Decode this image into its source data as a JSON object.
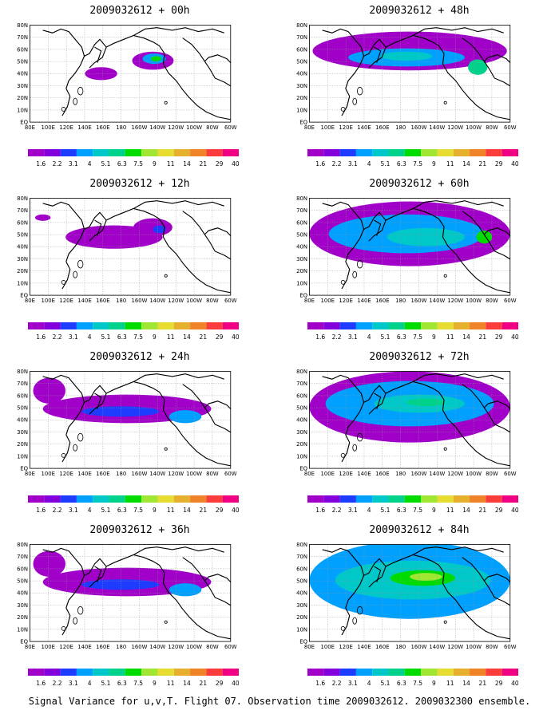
{
  "panels": [
    {
      "title": "2009032612 + 00h",
      "intensity": 0
    },
    {
      "title": "2009032612 + 48h",
      "intensity": 3
    },
    {
      "title": "2009032612 + 12h",
      "intensity": 1
    },
    {
      "title": "2009032612 + 60h",
      "intensity": 4
    },
    {
      "title": "2009032612 + 24h",
      "intensity": 2
    },
    {
      "title": "2009032612 + 72h",
      "intensity": 5
    },
    {
      "title": "2009032612 + 36h",
      "intensity": 2
    },
    {
      "title": "2009032612 + 84h",
      "intensity": 6
    }
  ],
  "lon_labels": [
    "80E",
    "100E",
    "120E",
    "140E",
    "160E",
    "180",
    "160W",
    "140W",
    "120W",
    "100W",
    "80W",
    "60W"
  ],
  "lat_labels": [
    "80N",
    "70N",
    "60N",
    "50N",
    "40N",
    "30N",
    "20N",
    "10N",
    "EQ"
  ],
  "colorbar": {
    "levels": [
      "1.6",
      "2.2",
      "3.1",
      "4",
      "5.1",
      "6.3",
      "7.5",
      "9",
      "11",
      "14",
      "21",
      "29",
      "40"
    ],
    "colors": [
      "#a000c8",
      "#8200dc",
      "#1e3cff",
      "#00a0ff",
      "#00c8c8",
      "#00d28c",
      "#00dc00",
      "#a0e632",
      "#e6dc32",
      "#e6af2d",
      "#f08228",
      "#fa3c3c",
      "#f00082"
    ]
  },
  "footer": "Signal Variance for u,v,T. Flight 07. Observation time 2009032612. 2009032300 ensemble."
}
